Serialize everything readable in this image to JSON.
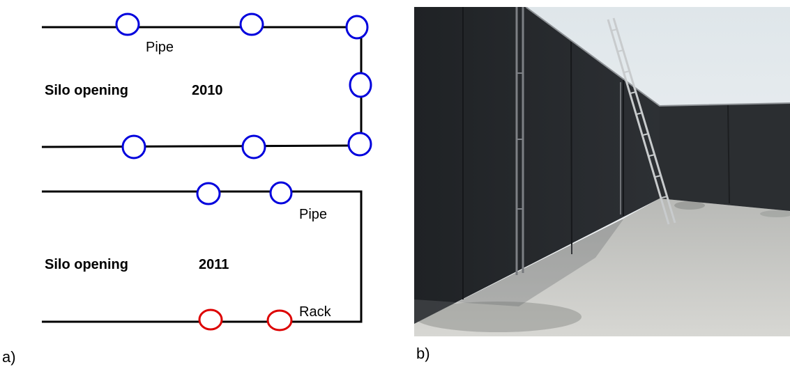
{
  "panel_a": {
    "tag": "a)",
    "top": {
      "title": "Silo opening",
      "year": "2010",
      "pipe_label": "Pipe"
    },
    "bottom": {
      "title": "Silo opening",
      "year": "2011",
      "pipe_label": "Pipe",
      "rack_label": "Rack"
    }
  },
  "panel_b": {
    "tag": "b)"
  },
  "colors": {
    "pipe": "#0000dd",
    "rack": "#dd0000",
    "line": "#000000"
  }
}
